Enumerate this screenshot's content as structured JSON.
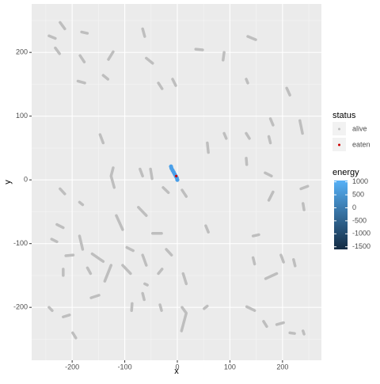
{
  "chart_data": {
    "type": "line",
    "x_label": "x",
    "y_label": "y",
    "xlim": [
      -277,
      274
    ],
    "ylim": [
      -283,
      276
    ],
    "xticks": [
      -200,
      -100,
      0,
      100,
      200
    ],
    "yticks": [
      -200,
      -100,
      0,
      100,
      200
    ],
    "grid": true,
    "series": [
      {
        "name": "alive",
        "color": "#bebebe",
        "x": [
          -244,
          -232,
          null,
          -223,
          -214,
          null,
          -232,
          -224,
          null,
          -182,
          -171,
          null,
          -185,
          -177,
          null,
          -189,
          -176,
          null,
          -141,
          -132,
          null,
          -131,
          -122,
          null,
          -66,
          -62,
          null,
          -59,
          -47,
          null,
          -36,
          -29,
          null,
          -9,
          -3,
          null,
          35,
          48,
          null,
          89,
          87,
          null,
          134,
          149,
          null,
          131,
          134,
          null,
          208,
          214,
          null,
          233,
          238,
          null,
          177,
          182,
          null,
          174,
          177,
          null,
          131,
          137,
          null,
          89,
          93,
          null,
          57,
          59,
          null,
          131,
          132,
          null,
          167,
          179,
          null,
          182,
          174,
          null,
          235,
          248,
          null,
          239,
          241,
          null,
          9,
          17,
          null,
          -27,
          -17,
          null,
          -71,
          -66,
          null,
          -51,
          -48,
          null,
          -122,
          -126,
          -120,
          null,
          -147,
          -141,
          null,
          -223,
          -214,
          null,
          -186,
          -180,
          null,
          -229,
          -217,
          null,
          -239,
          -229,
          null,
          -186,
          -180,
          null,
          -212,
          -198,
          null,
          -217,
          -217,
          null,
          -162,
          -141,
          null,
          -171,
          -165,
          null,
          -126,
          -138,
          null,
          -116,
          -104,
          null,
          -74,
          -59,
          null,
          -96,
          -84,
          null,
          -47,
          -30,
          null,
          -21,
          -11,
          null,
          -66,
          -59,
          null,
          -104,
          -89,
          null,
          -29,
          -36,
          null,
          -62,
          -57,
          null,
          -164,
          -149,
          null,
          -86,
          -87,
          null,
          -66,
          -63,
          null,
          11,
          17,
          null,
          9,
          17,
          8,
          null,
          51,
          57,
          null,
          54,
          59,
          null,
          144,
          155,
          null,
          144,
          147,
          null,
          168,
          189,
          null,
          197,
          202,
          null,
          221,
          224,
          null,
          132,
          147,
          null,
          164,
          170,
          null,
          189,
          202,
          null,
          214,
          223,
          null,
          239,
          241,
          null,
          -244,
          -238,
          null,
          -217,
          -205,
          null,
          -199,
          -193,
          null,
          -33,
          -30
        ],
        "y": [
          226,
          222,
          null,
          247,
          237,
          null,
          207,
          198,
          null,
          232,
          230,
          null,
          195,
          185,
          null,
          155,
          152,
          null,
          164,
          158,
          null,
          189,
          201,
          null,
          237,
          225,
          null,
          191,
          183,
          null,
          152,
          143,
          null,
          158,
          148,
          null,
          205,
          204,
          null,
          200,
          188,
          null,
          225,
          220,
          null,
          158,
          152,
          null,
          144,
          133,
          null,
          93,
          73,
          null,
          96,
          86,
          null,
          68,
          58,
          null,
          73,
          65,
          null,
          73,
          65,
          null,
          58,
          43,
          null,
          34,
          24,
          null,
          11,
          6,
          null,
          -19,
          -32,
          null,
          -14,
          -10,
          null,
          -37,
          -47,
          null,
          -16,
          -26,
          null,
          -12,
          -20,
          null,
          17,
          6,
          null,
          17,
          2,
          null,
          19,
          6,
          -12,
          null,
          71,
          58,
          null,
          -14,
          -22,
          null,
          -35,
          -39,
          null,
          -70,
          -75,
          null,
          -93,
          -97,
          null,
          -88,
          -109,
          null,
          -119,
          -118,
          null,
          -140,
          -150,
          null,
          -116,
          -128,
          null,
          -138,
          -147,
          null,
          -134,
          -159,
          null,
          -56,
          -78,
          null,
          -43,
          -56,
          null,
          -106,
          -111,
          null,
          -84,
          -84,
          null,
          -109,
          -118,
          null,
          -118,
          -134,
          null,
          -134,
          -147,
          null,
          -140,
          -147,
          null,
          -163,
          -165,
          null,
          -185,
          -181,
          null,
          -194,
          -205,
          null,
          -178,
          -188,
          null,
          -147,
          -163,
          null,
          -200,
          -209,
          -237,
          null,
          -202,
          -198,
          null,
          -72,
          -82,
          null,
          -88,
          -86,
          null,
          -122,
          -132,
          null,
          -155,
          -147,
          null,
          -118,
          -129,
          null,
          -125,
          -135,
          null,
          -199,
          -205,
          null,
          -222,
          -230,
          null,
          -227,
          -224,
          null,
          -240,
          -241,
          null,
          -237,
          -242,
          null,
          -200,
          -205,
          null,
          -215,
          -212,
          null,
          -240,
          -248,
          null,
          -196,
          -205
        ]
      },
      {
        "name": "eaten",
        "color": "#cc0000",
        "x": [
          -2
        ],
        "y": [
          6
        ]
      }
    ],
    "energy_trail": {
      "color": "#4a9fe8",
      "x": [
        -12,
        -11,
        -9,
        -7,
        -5,
        -3,
        -1,
        0
      ],
      "y": [
        21,
        18,
        15,
        12,
        9,
        6,
        3,
        0
      ]
    },
    "status_title": "status",
    "energy_title": "energy",
    "energy_colors": [
      "#132B43",
      "#56B1F7"
    ],
    "energy_lim": [
      -1600,
      1050
    ],
    "energy_ticks": [
      1000,
      500,
      0,
      -500,
      -1000,
      -1500
    ]
  }
}
